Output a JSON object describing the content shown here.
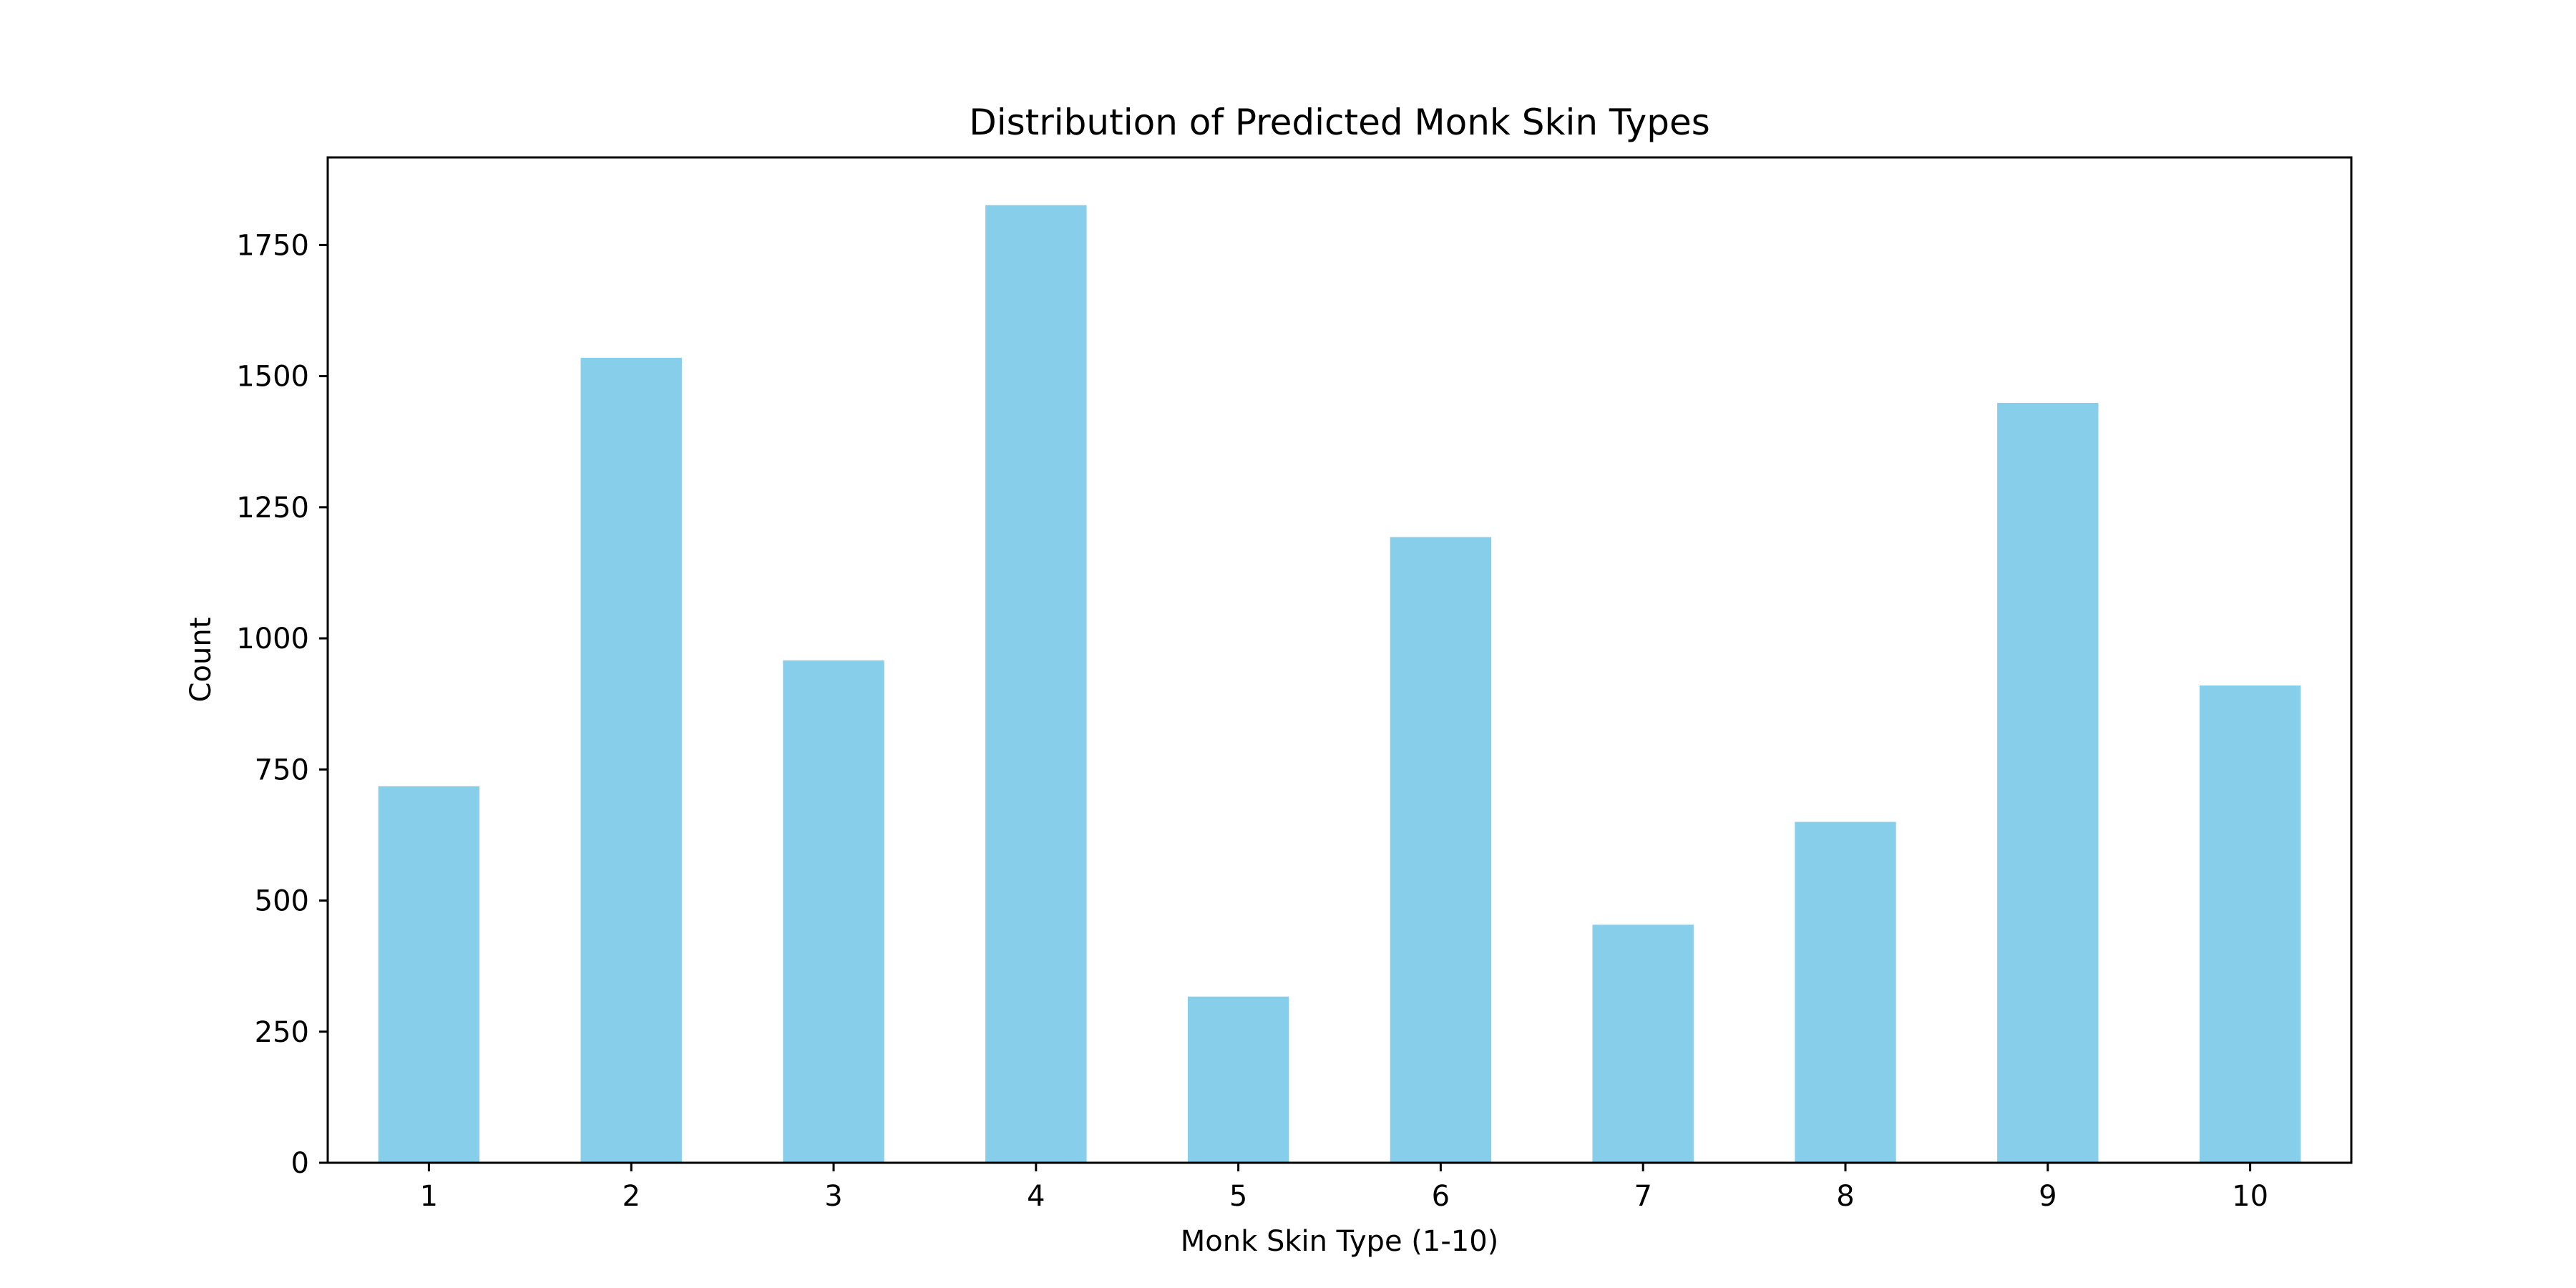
{
  "chart_data": {
    "type": "bar",
    "title": "Distribution of Predicted Monk Skin Types",
    "xlabel": "Monk Skin Type (1-10)",
    "ylabel": "Count",
    "categories": [
      "1",
      "2",
      "3",
      "4",
      "5",
      "6",
      "7",
      "8",
      "9",
      "10"
    ],
    "values": [
      718,
      1535,
      958,
      1826,
      317,
      1193,
      454,
      650,
      1449,
      910
    ],
    "ylim": [
      0,
      1917
    ],
    "yticks": [
      0,
      250,
      500,
      750,
      1000,
      1250,
      1500,
      1750
    ],
    "bar_color": "#87ceeb",
    "grid": false,
    "legend": "none"
  }
}
